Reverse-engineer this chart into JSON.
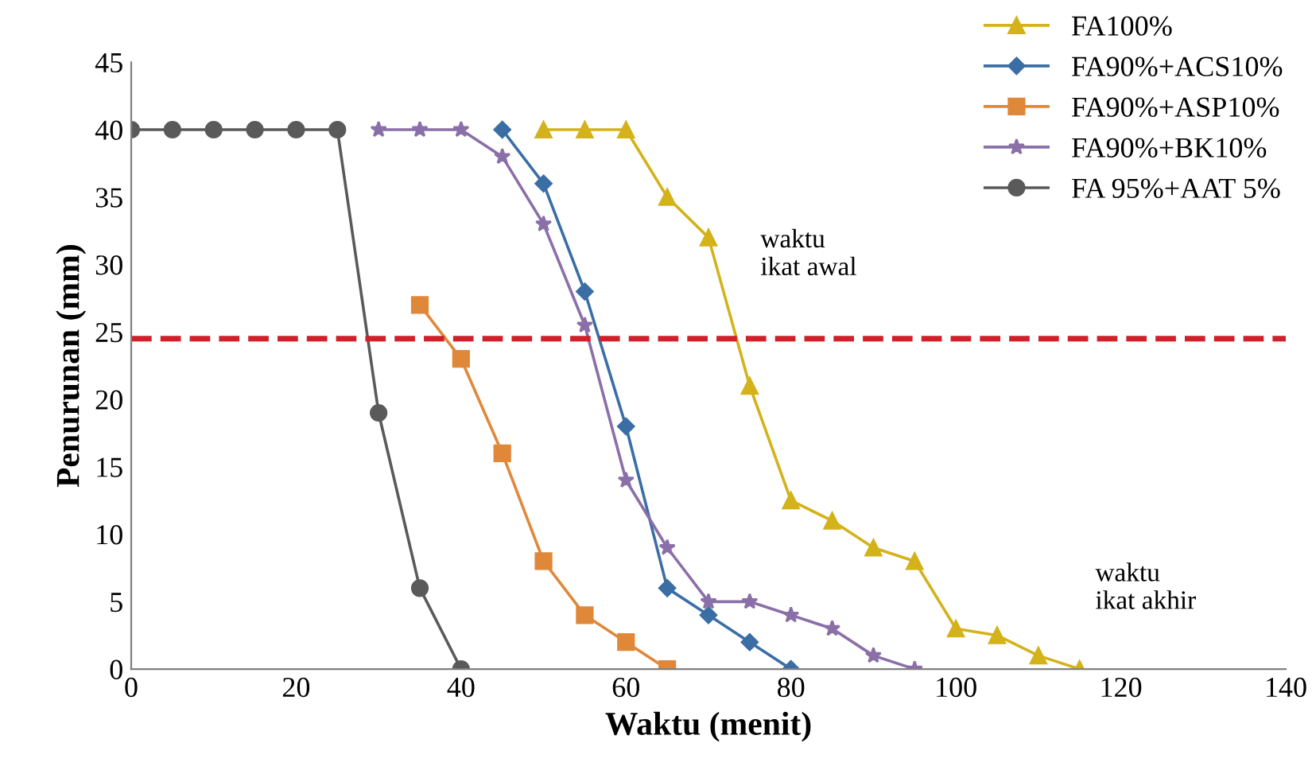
{
  "chart_data": {
    "type": "line",
    "xlabel": "Waktu (menit)",
    "ylabel": "Penurunan (mm)",
    "xlim": [
      0,
      140
    ],
    "xticks": [
      0,
      20,
      40,
      60,
      80,
      100,
      120,
      140
    ],
    "ylim": [
      0,
      45
    ],
    "yticks": [
      0,
      5,
      10,
      15,
      20,
      25,
      30,
      35,
      40,
      45
    ],
    "grid": false,
    "legend": "top right",
    "series": [
      {
        "name": "FA100%",
        "color": "#d4b21a",
        "marker": "triangle",
        "x": [
          50,
          55,
          60,
          65,
          70,
          75,
          80,
          85,
          90,
          95,
          100,
          105,
          110,
          115
        ],
        "values": [
          40,
          40,
          40,
          35,
          32,
          21,
          12.5,
          11,
          9,
          8,
          3,
          2.5,
          1,
          0
        ]
      },
      {
        "name": "FA90%+ACS10%",
        "color": "#3a6ea5",
        "marker": "diamond",
        "x": [
          45,
          50,
          55,
          60,
          65,
          70,
          75,
          80
        ],
        "values": [
          40,
          36,
          28,
          18,
          6,
          4,
          2,
          0
        ]
      },
      {
        "name": "FA90%+ASP10%",
        "color": "#e0883a",
        "marker": "square",
        "x": [
          35,
          40,
          45,
          50,
          55,
          60,
          65
        ],
        "values": [
          27,
          23,
          16,
          8,
          4,
          2,
          0
        ]
      },
      {
        "name": "FA90%+BK10%",
        "color": "#8a6fa8",
        "marker": "star",
        "x": [
          30,
          35,
          40,
          45,
          50,
          55,
          60,
          65,
          70,
          75,
          80,
          85,
          90,
          95
        ],
        "values": [
          40,
          40,
          40,
          38,
          33,
          25.5,
          14,
          9,
          5,
          5,
          4,
          3,
          1,
          0
        ]
      },
      {
        "name": "FA 95%+AAT 5%",
        "color": "#5a5a5a",
        "marker": "circle",
        "x": [
          0,
          5,
          10,
          15,
          20,
          25,
          30,
          35,
          40
        ],
        "values": [
          40,
          40,
          40,
          40,
          40,
          40,
          19,
          6,
          0
        ]
      }
    ],
    "ref_lines": [
      {
        "axis": "y",
        "value": 24.5,
        "color": "#d0202a",
        "line_style": "dashed"
      }
    ],
    "annotations": [
      "waktu\nikat awal",
      "waktu\nikat akhir"
    ]
  }
}
